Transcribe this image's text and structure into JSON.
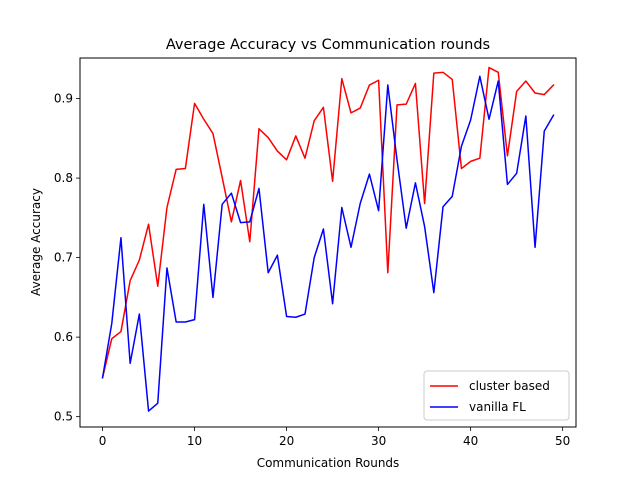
{
  "chart_data": {
    "type": "line",
    "title": "Average Accuracy vs Communication rounds",
    "xlabel": "Communication Rounds",
    "ylabel": "Average Accuracy",
    "xlim": [
      -2.45,
      51.45
    ],
    "ylim": [
      0.487,
      0.951
    ],
    "xticks": [
      0,
      10,
      20,
      30,
      40,
      50
    ],
    "yticks": [
      0.5,
      0.6,
      0.7,
      0.8,
      0.9
    ],
    "grid": false,
    "legend_position": "bottom-right",
    "x": [
      0,
      1,
      2,
      3,
      4,
      5,
      6,
      7,
      8,
      9,
      10,
      11,
      12,
      13,
      14,
      15,
      16,
      17,
      18,
      19,
      20,
      21,
      22,
      23,
      24,
      25,
      26,
      27,
      28,
      29,
      30,
      31,
      32,
      33,
      34,
      35,
      36,
      37,
      38,
      39,
      40,
      41,
      42,
      43,
      44,
      45,
      46,
      47,
      48,
      49
    ],
    "series": [
      {
        "name": "cluster based",
        "color": "#ff0000",
        "values": [
          0.549,
          0.598,
          0.607,
          0.671,
          0.697,
          0.742,
          0.664,
          0.763,
          0.811,
          0.812,
          0.894,
          0.874,
          0.856,
          0.801,
          0.745,
          0.797,
          0.72,
          0.862,
          0.851,
          0.834,
          0.823,
          0.853,
          0.825,
          0.872,
          0.889,
          0.796,
          0.925,
          0.882,
          0.888,
          0.917,
          0.923,
          0.681,
          0.892,
          0.893,
          0.919,
          0.768,
          0.932,
          0.933,
          0.924,
          0.812,
          0.821,
          0.825,
          0.939,
          0.933,
          0.828,
          0.909,
          0.922,
          0.907,
          0.905,
          0.917
        ]
      },
      {
        "name": "vanilla FL",
        "color": "#0000ff",
        "values": [
          0.549,
          0.617,
          0.725,
          0.567,
          0.629,
          0.507,
          0.517,
          0.687,
          0.619,
          0.619,
          0.622,
          0.767,
          0.65,
          0.767,
          0.781,
          0.744,
          0.745,
          0.787,
          0.681,
          0.703,
          0.626,
          0.625,
          0.629,
          0.7,
          0.736,
          0.642,
          0.763,
          0.713,
          0.768,
          0.805,
          0.759,
          0.917,
          0.823,
          0.737,
          0.794,
          0.739,
          0.656,
          0.764,
          0.777,
          0.84,
          0.873,
          0.928,
          0.874,
          0.922,
          0.792,
          0.806,
          0.878,
          0.713,
          0.859,
          0.879
        ]
      }
    ]
  }
}
